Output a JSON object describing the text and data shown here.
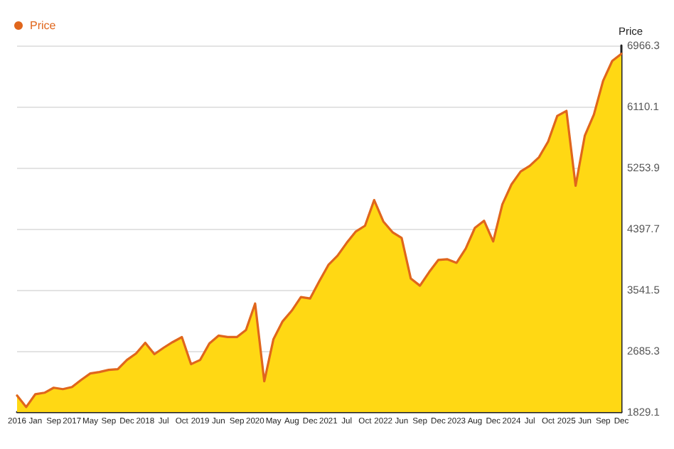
{
  "chart_data": {
    "type": "area",
    "ylabel": "Price",
    "legend": "top left",
    "grid": "y",
    "marker": "none",
    "line_style": "solid",
    "categories": [
      "2016",
      null,
      "Jan",
      null,
      "Sep",
      null,
      "2017",
      null,
      "May",
      null,
      "Sep",
      null,
      "Dec",
      null,
      "2018",
      null,
      "Jul",
      null,
      "Oct",
      null,
      "2019",
      null,
      "Jun",
      null,
      "Sep",
      null,
      "2020",
      null,
      "May",
      null,
      "Aug",
      null,
      "Dec",
      null,
      "2021",
      null,
      "Jul",
      null,
      "Oct",
      null,
      "2022",
      null,
      "Jun",
      null,
      "Sep",
      null,
      "Dec",
      null,
      "2023",
      null,
      "Aug",
      null,
      "Dec",
      null,
      "2024",
      null,
      "Jul",
      null,
      "Oct",
      null,
      "2025",
      null,
      "Jun",
      null,
      "Sep",
      null,
      "Dec"
    ],
    "ylim": [
      1829.1,
      6966.3
    ],
    "yticks": [
      1829.1,
      2685.3,
      3541.5,
      4397.7,
      5253.9,
      6110.1,
      6966.3
    ],
    "series": [
      {
        "name": "Price",
        "color": "#e0661c",
        "values": [
          2060,
          1900,
          2080,
          2100,
          2170,
          2150,
          2180,
          2280,
          2370,
          2390,
          2420,
          2430,
          2560,
          2650,
          2800,
          2640,
          2730,
          2810,
          2880,
          2500,
          2560,
          2790,
          2900,
          2880,
          2880,
          2980,
          3350,
          2260,
          2850,
          3100,
          3250,
          3440,
          3420,
          3660,
          3890,
          4020,
          4200,
          4360,
          4440,
          4800,
          4500,
          4350,
          4270,
          3700,
          3600,
          3790,
          3960,
          3970,
          3920,
          4120,
          4410,
          4510,
          4220,
          4740,
          5020,
          5200,
          5280,
          5400,
          5620,
          5980,
          6050,
          5000,
          5700,
          6000,
          6470,
          6750,
          6850
        ]
      }
    ]
  }
}
